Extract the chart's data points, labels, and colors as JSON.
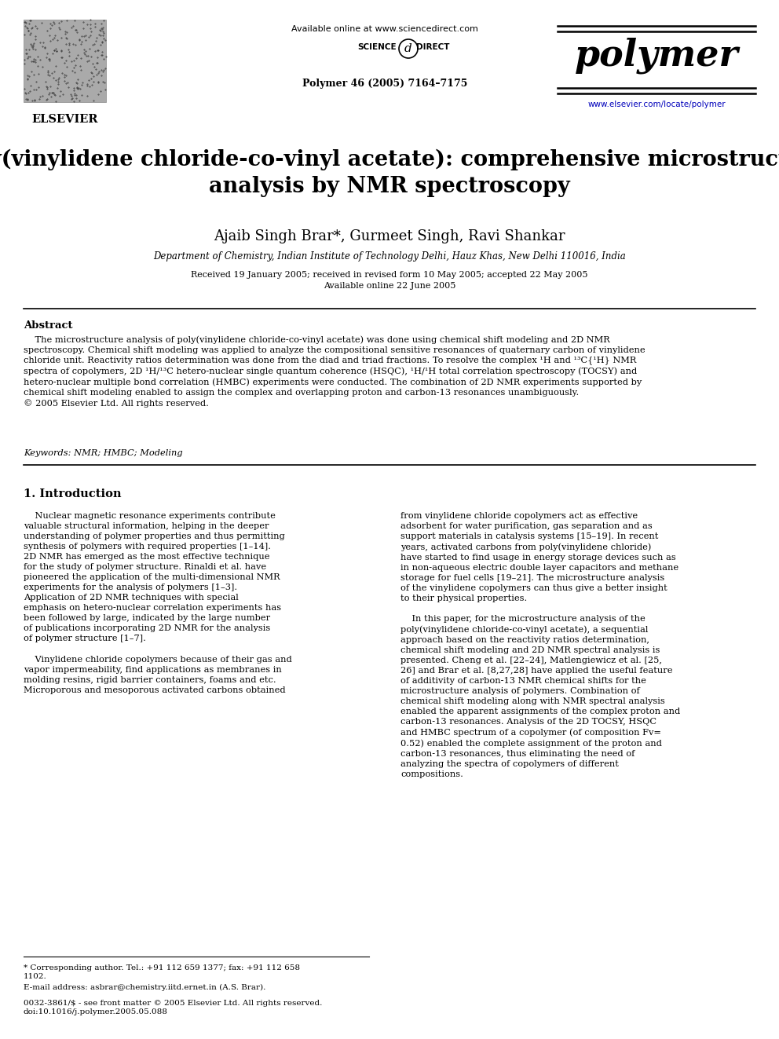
{
  "bg_color": "#ffffff",
  "header": {
    "available_online": "Available online at www.sciencedirect.com",
    "journal_info": "Polymer 46 (2005) 7164–7175",
    "journal_name": "polymer",
    "website": "www.elsevier.com/locate/polymer",
    "publisher": "ELSEVIER"
  },
  "title": "Poly(vinylidene chloride-co-vinyl acetate): comprehensive microstructure\nanalysis by NMR spectroscopy",
  "authors": "Ajaib Singh Brar*, Gurmeet Singh, Ravi Shankar",
  "affiliation": "Department of Chemistry, Indian Institute of Technology Delhi, Hauz Khas, New Delhi 110016, India",
  "dates": "Received 19 January 2005; received in revised form 10 May 2005; accepted 22 May 2005\nAvailable online 22 June 2005",
  "abstract_title": "Abstract",
  "abstract_text": "    The microstructure analysis of poly(vinylidene chloride-co-vinyl acetate) was done using chemical shift modeling and 2D NMR\nspectroscopy. Chemical shift modeling was applied to analyze the compositional sensitive resonances of quaternary carbon of vinylidene\nchloride unit. Reactivity ratios determination was done from the diad and triad fractions. To resolve the complex ¹H and ¹³C{¹H} NMR\nspectra of copolymers, 2D ¹H/¹³C hetero-nuclear single quantum coherence (HSQC), ¹H/¹H total correlation spectroscopy (TOCSY) and\nhetero-nuclear multiple bond correlation (HMBC) experiments were conducted. The combination of 2D NMR experiments supported by\nchemical shift modeling enabled to assign the complex and overlapping proton and carbon-13 resonances unambiguously.\n© 2005 Elsevier Ltd. All rights reserved.",
  "keywords": "Keywords: NMR; HMBC; Modeling",
  "section1_title": "1. Introduction",
  "section1_left": "    Nuclear magnetic resonance experiments contribute\nvaluable structural information, helping in the deeper\nunderstanding of polymer properties and thus permitting\nsynthesis of polymers with required properties [1–14].\n2D NMR has emerged as the most effective technique\nfor the study of polymer structure. Rinaldi et al. have\npioneered the application of the multi-dimensional NMR\nexperiments for the analysis of polymers [1–3].\nApplication of 2D NMR techniques with special\nemphasis on hetero-nuclear correlation experiments has\nbeen followed by large, indicated by the large number\nof publications incorporating 2D NMR for the analysis\nof polymer structure [1–7].\n\n    Vinylidene chloride copolymers because of their gas and\nvapor impermeability, find applications as membranes in\nmolding resins, rigid barrier containers, foams and etc.\nMicroporous and mesoporous activated carbons obtained",
  "section1_right": "from vinylidene chloride copolymers act as effective\nadsorbent for water purification, gas separation and as\nsupport materials in catalysis systems [15–19]. In recent\nyears, activated carbons from poly(vinylidene chloride)\nhave started to find usage in energy storage devices such as\nin non-aqueous electric double layer capacitors and methane\nstorage for fuel cells [19–21]. The microstructure analysis\nof the vinylidene copolymers can thus give a better insight\nto their physical properties.\n\n    In this paper, for the microstructure analysis of the\npoly(vinylidene chloride-co-vinyl acetate), a sequential\napproach based on the reactivity ratios determination,\nchemical shift modeling and 2D NMR spectral analysis is\npresented. Cheng et al. [22–24], Matlengiewicz et al. [25,\n26] and Brar et al. [8,27,28] have applied the useful feature\nof additivity of carbon-13 NMR chemical shifts for the\nmicrostructure analysis of polymers. Combination of\nchemical shift modeling along with NMR spectral analysis\nenabled the apparent assignments of the complex proton and\ncarbon-13 resonances. Analysis of the 2D TOCSY, HSQC\nand HMBC spectrum of a copolymer (of composition Fv=\n0.52) enabled the complete assignment of the proton and\ncarbon-13 resonances, thus eliminating the need of\nanalyzing the spectra of copolymers of different\ncompositions.",
  "footnote1": "* Corresponding author. Tel.: +91 112 659 1377; fax: +91 112 658\n1102.",
  "footnote2": "E-mail address: asbrar@chemistry.iitd.ernet.in (A.S. Brar).",
  "footnote3": "0032-3861/$ - see front matter © 2005 Elsevier Ltd. All rights reserved.\ndoi:10.1016/j.polymer.2005.05.088"
}
